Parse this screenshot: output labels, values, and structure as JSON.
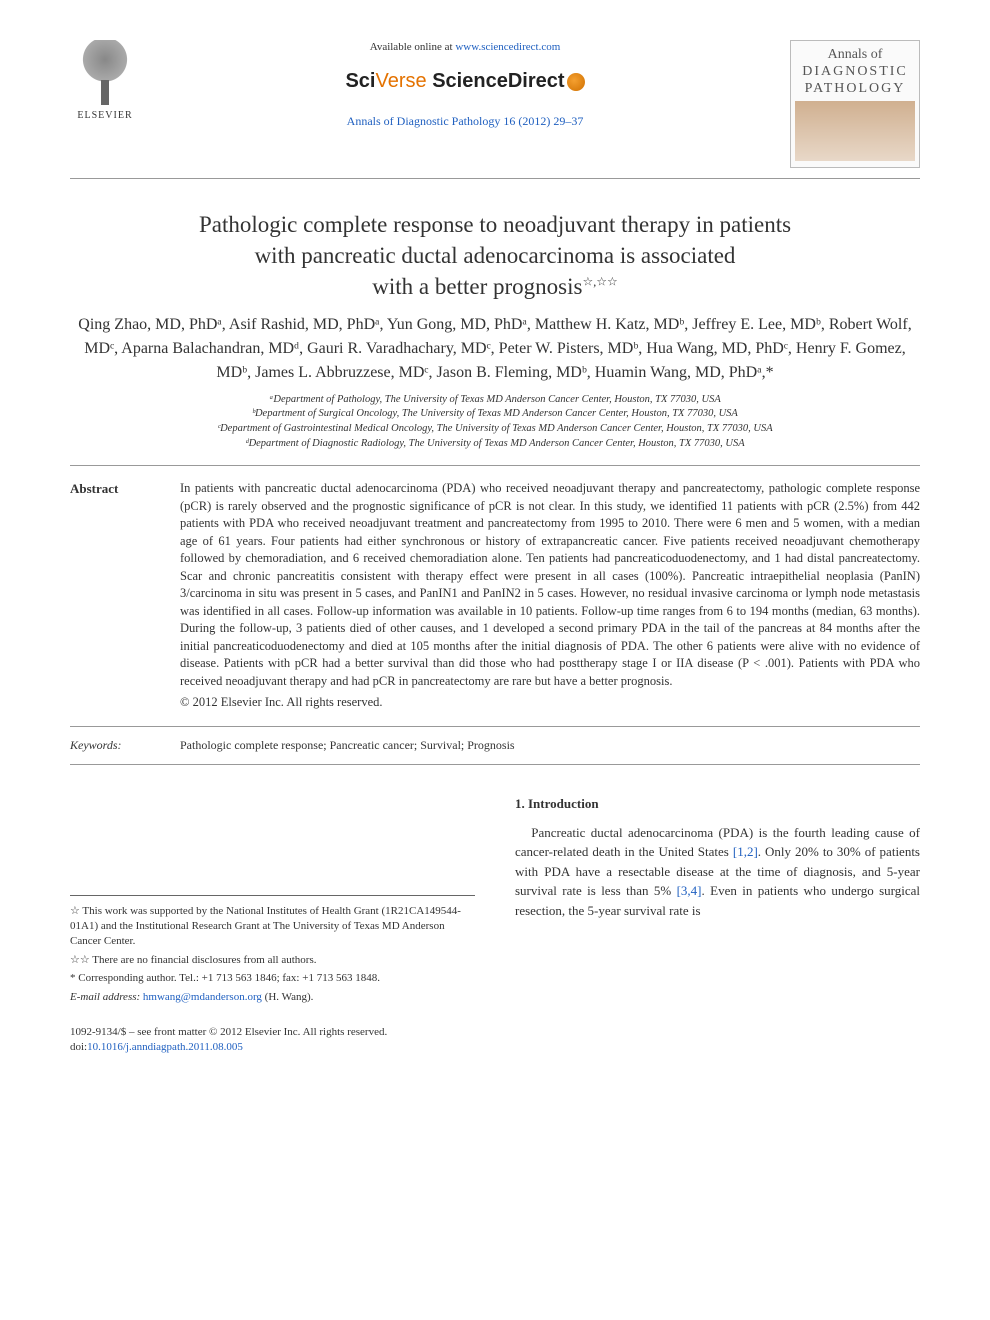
{
  "header": {
    "elsevier_label": "ELSEVIER",
    "available_prefix": "Available online at ",
    "available_url": "www.sciencedirect.com",
    "sciverse_sci": "Sci",
    "sciverse_verse": "Verse",
    "sciverse_sd": " ScienceDirect",
    "journal_ref": "Annals of Diagnostic Pathology 16 (2012) 29–37",
    "cover_line1": "Annals of",
    "cover_line2": "DIAGNOSTIC",
    "cover_line3": "PATHOLOGY"
  },
  "title": {
    "line1": "Pathologic complete response to neoadjuvant therapy in patients",
    "line2": "with pancreatic ductal adenocarcinoma is associated",
    "line3_prefix": "with a better prognosis",
    "sup_marks": "☆,☆☆"
  },
  "authors": {
    "list": "Qing Zhao, MD, PhDᵃ, Asif Rashid, MD, PhDᵃ, Yun Gong, MD, PhDᵃ, Matthew H. Katz, MDᵇ, Jeffrey E. Lee, MDᵇ, Robert Wolf, MDᶜ, Aparna Balachandran, MDᵈ, Gauri R. Varadhachary, MDᶜ, Peter W. Pisters, MDᵇ, Hua Wang, MD, PhDᶜ, Henry F. Gomez, MDᵇ, James L. Abbruzzese, MDᶜ, Jason B. Fleming, MDᵇ, Huamin Wang, MD, PhDᵃ,*"
  },
  "affiliations": {
    "a": "ᵃDepartment of Pathology, The University of Texas MD Anderson Cancer Center, Houston, TX 77030, USA",
    "b": "ᵇDepartment of Surgical Oncology, The University of Texas MD Anderson Cancer Center, Houston, TX 77030, USA",
    "c": "ᶜDepartment of Gastrointestinal Medical Oncology, The University of Texas MD Anderson Cancer Center, Houston, TX 77030, USA",
    "d": "ᵈDepartment of Diagnostic Radiology, The University of Texas MD Anderson Cancer Center, Houston, TX 77030, USA"
  },
  "abstract": {
    "label": "Abstract",
    "text": "In patients with pancreatic ductal adenocarcinoma (PDA) who received neoadjuvant therapy and pancreatectomy, pathologic complete response (pCR) is rarely observed and the prognostic significance of pCR is not clear. In this study, we identified 11 patients with pCR (2.5%) from 442 patients with PDA who received neoadjuvant treatment and pancreatectomy from 1995 to 2010. There were 6 men and 5 women, with a median age of 61 years. Four patients had either synchronous or history of extrapancreatic cancer. Five patients received neoadjuvant chemotherapy followed by chemoradiation, and 6 received chemoradiation alone. Ten patients had pancreaticoduodenectomy, and 1 had distal pancreatectomy. Scar and chronic pancreatitis consistent with therapy effect were present in all cases (100%). Pancreatic intraepithelial neoplasia (PanIN) 3/carcinoma in situ was present in 5 cases, and PanIN1 and PanIN2 in 5 cases. However, no residual invasive carcinoma or lymph node metastasis was identified in all cases. Follow-up information was available in 10 patients. Follow-up time ranges from 6 to 194 months (median, 63 months). During the follow-up, 3 patients died of other causes, and 1 developed a second primary PDA in the tail of the pancreas at 84 months after the initial pancreaticoduodenectomy and died at 105 months after the initial diagnosis of PDA. The other 6 patients were alive with no evidence of disease. Patients with pCR had a better survival than did those who had posttherapy stage I or IIA disease (P < .001). Patients with PDA who received neoadjuvant therapy and had pCR in pancreatectomy are rare but have a better prognosis.",
    "copyright": "© 2012 Elsevier Inc. All rights reserved."
  },
  "keywords": {
    "label": "Keywords:",
    "text": "Pathologic complete response; Pancreatic cancer; Survival; Prognosis"
  },
  "footnotes": {
    "star1": "☆ This work was supported by the National Institutes of Health Grant (1R21CA149544-01A1) and the Institutional Research Grant at The University of Texas MD Anderson Cancer Center.",
    "star2": "☆☆ There are no financial disclosures from all authors.",
    "corr": "* Corresponding author. Tel.: +1 713 563 1846; fax: +1 713 563 1848.",
    "email_label": "E-mail address: ",
    "email": "hmwang@mdanderson.org",
    "email_suffix": " (H. Wang)."
  },
  "intro": {
    "heading": "1. Introduction",
    "p1_a": "Pancreatic ductal adenocarcinoma (PDA) is the fourth leading cause of cancer-related death in the United States ",
    "cite1": "[1,2]",
    "p1_b": ". Only 20% to 30% of patients with PDA have a resectable disease at the time of diagnosis, and 5-year survival rate is less than 5% ",
    "cite2": "[3,4]",
    "p1_c": ". Even in patients who undergo surgical resection, the 5-year survival rate is"
  },
  "footer": {
    "issn_line": "1092-9134/$ – see front matter © 2012 Elsevier Inc. All rights reserved.",
    "doi_prefix": "doi:",
    "doi": "10.1016/j.anndiagpath.2011.08.005"
  },
  "colors": {
    "link": "#2060c0",
    "text": "#333333",
    "rule": "#999999"
  }
}
